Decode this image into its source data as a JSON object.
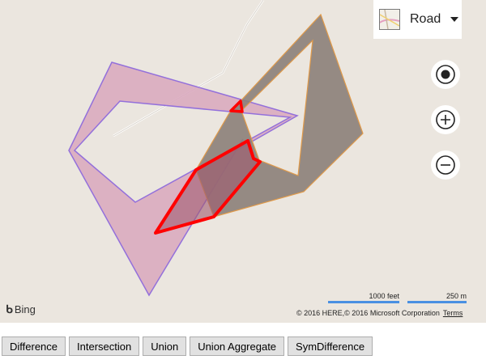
{
  "map": {
    "style_picker": {
      "label": "Road",
      "icon": "map-style-thumbnail-icon"
    },
    "controls": [
      {
        "name": "my-location-button",
        "icon": "locate-icon"
      },
      {
        "name": "zoom-in-button",
        "icon": "plus-icon"
      },
      {
        "name": "zoom-out-button",
        "icon": "minus-icon"
      }
    ],
    "logo": {
      "text": "Bing"
    },
    "scale": {
      "feet_label": "1000 feet",
      "meters_label": "250 m"
    },
    "copyright": {
      "text": "© 2016 HERE,© 2016 Microsoft Corporation",
      "terms_label": "Terms"
    },
    "colors": {
      "background": "#ebe6df",
      "polygon_a_fill": "#d9a7bd",
      "polygon_a_stroke": "#9370db",
      "polygon_b_fill": "#8c7f79",
      "polygon_b_stroke": "#e09a4a",
      "result_stroke": "#ff0000",
      "result_fill": "#a05a70"
    }
  },
  "toolbar": {
    "buttons": [
      {
        "label": "Difference"
      },
      {
        "label": "Intersection"
      },
      {
        "label": "Union"
      },
      {
        "label": "Union Aggregate"
      },
      {
        "label": "SymDifference"
      }
    ]
  }
}
